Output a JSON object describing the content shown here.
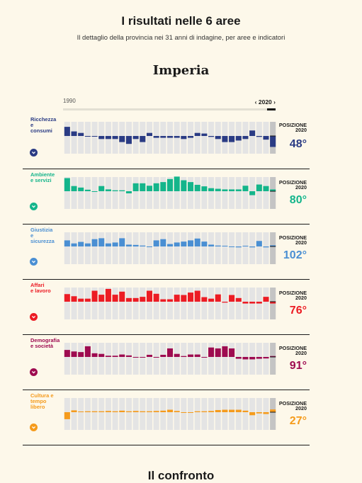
{
  "header": {
    "title": "I risultati nelle 6 aree",
    "subtitle": "Il dettaglio della provincia nei 31 anni di indagine, per aree e indicatori",
    "province": "Imperia"
  },
  "timeline": {
    "start": "1990",
    "end": "2020",
    "selected": "2020"
  },
  "position_label_line1": "POSIZIONE",
  "position_label_line2": "2020",
  "bottom_title": "Il confronto",
  "chart_data": [
    {
      "type": "bar",
      "area": "Ricchezza e consumi",
      "label_lines": [
        "Ricchezza",
        "e",
        "consumi"
      ],
      "color": "#2a3b84",
      "position": "48°",
      "x_ticks": [
        "1990",
        "1995",
        "2000",
        "2005",
        "2010",
        "2015",
        "2020"
      ],
      "years": [
        1990,
        1991,
        1992,
        1993,
        1994,
        1995,
        1996,
        1997,
        1998,
        1999,
        2000,
        2001,
        2002,
        2003,
        2004,
        2005,
        2006,
        2007,
        2008,
        2009,
        2010,
        2011,
        2012,
        2013,
        2014,
        2015,
        2016,
        2017,
        2018,
        2019,
        2020
      ],
      "values": [
        3,
        1.5,
        1,
        -0.2,
        -0.2,
        -1,
        -1,
        -1,
        -2,
        -2.6,
        -1,
        -2,
        1,
        -0.6,
        -0.6,
        -0.6,
        -0.6,
        -1,
        -0.6,
        1,
        0.8,
        -0.3,
        -1,
        -2,
        -2,
        -1.5,
        -1,
        1.8,
        -0.3,
        -1.2,
        -3.6
      ]
    },
    {
      "type": "bar",
      "area": "Ambiente e servizi",
      "label_lines": [
        "Ambiente",
        "e servizi"
      ],
      "color": "#14b58b",
      "position": "80°",
      "x_ticks": [
        "1990",
        "1995",
        "2000",
        "2005",
        "2010",
        "2015",
        "2020"
      ],
      "years": [
        1990,
        1991,
        1992,
        1993,
        1994,
        1995,
        1996,
        1997,
        1998,
        1999,
        2000,
        2001,
        2002,
        2003,
        2004,
        2005,
        2006,
        2007,
        2008,
        2009,
        2010,
        2011,
        2012,
        2013,
        2014,
        2015,
        2016,
        2017,
        2018,
        2019,
        2020
      ],
      "values": [
        4.3,
        1.7,
        1.2,
        0.5,
        -0.2,
        1.7,
        0.6,
        0.3,
        0.3,
        -0.7,
        2.6,
        2.6,
        1.8,
        2.6,
        3,
        4,
        4.8,
        3.6,
        3,
        2.1,
        1.6,
        1,
        0.8,
        0.6,
        0.6,
        0.6,
        1.8,
        -1.3,
        2.2,
        1.7,
        0.6
      ]
    },
    {
      "type": "bar",
      "area": "Giustizia e sicurezza",
      "label_lines": [
        "Giustizia",
        "e",
        "sicurezza"
      ],
      "color": "#4a8fd3",
      "position": "102°",
      "x_ticks": [
        "1990",
        "1995",
        "2000",
        "2005",
        "2010",
        "2015",
        "2020"
      ],
      "years": [
        1990,
        1991,
        1992,
        1993,
        1994,
        1995,
        1996,
        1997,
        1998,
        1999,
        2000,
        2001,
        2002,
        2003,
        2004,
        2005,
        2006,
        2007,
        2008,
        2009,
        2010,
        2011,
        2012,
        2013,
        2014,
        2015,
        2016,
        2017,
        2018,
        2019,
        2020
      ],
      "values": [
        2,
        1,
        1.5,
        1,
        2.4,
        2.7,
        1,
        1.3,
        2.7,
        0.6,
        0.5,
        0.3,
        -0.2,
        2,
        2.4,
        0.8,
        1.3,
        1.6,
        2,
        2.6,
        1.6,
        0.6,
        0.3,
        0.2,
        -0.2,
        -0.3,
        0.2,
        -0.3,
        1.8,
        -0.3,
        0.4
      ]
    },
    {
      "type": "bar",
      "area": "Affari e lavoro",
      "label_lines": [
        "Affari",
        "e lavoro"
      ],
      "color": "#ec1c24",
      "position": "76°",
      "x_ticks": [
        "1990",
        "1995",
        "2000",
        "2005",
        "2010",
        "2015",
        "2020"
      ],
      "years": [
        1990,
        1991,
        1992,
        1993,
        1994,
        1995,
        1996,
        1997,
        1998,
        1999,
        2000,
        2001,
        2002,
        2003,
        2004,
        2005,
        2006,
        2007,
        2008,
        2009,
        2010,
        2011,
        2012,
        2013,
        2014,
        2015,
        2016,
        2017,
        2018,
        2019,
        2020
      ],
      "values": [
        2.5,
        1.8,
        1,
        1,
        3.6,
        2.3,
        4.2,
        2.3,
        3.3,
        1.2,
        1.2,
        1.6,
        3.6,
        2.6,
        0.8,
        0.8,
        2.3,
        2.2,
        3,
        3.6,
        1.5,
        1,
        2.4,
        -0.3,
        2.2,
        1.2,
        -0.6,
        -0.6,
        -0.6,
        1.6,
        -0.6
      ]
    },
    {
      "type": "bar",
      "area": "Demografia e società",
      "label_lines": [
        "Demografia",
        "e società"
      ],
      "color": "#9e0b50",
      "position": "91°",
      "x_ticks": [
        "1990",
        "1995",
        "2000",
        "2005",
        "2010",
        "2015",
        "2020"
      ],
      "years": [
        1990,
        1991,
        1992,
        1993,
        1994,
        1995,
        1996,
        1997,
        1998,
        1999,
        2000,
        2001,
        2002,
        2003,
        2004,
        2005,
        2006,
        2007,
        2008,
        2009,
        2010,
        2011,
        2012,
        2013,
        2014,
        2015,
        2016,
        2017,
        2018,
        2019,
        2020
      ],
      "values": [
        2.3,
        1.8,
        1.6,
        3.5,
        1.2,
        1,
        0.4,
        0.4,
        0.8,
        0.5,
        -0.2,
        -0.2,
        0.7,
        -0.2,
        0.7,
        2.8,
        1,
        0.3,
        0.8,
        0.8,
        -0.2,
        3.1,
        2.8,
        3.5,
        2.8,
        -0.6,
        -0.8,
        -0.8,
        -0.6,
        -0.5,
        0.3
      ]
    },
    {
      "type": "bar",
      "area": "Cultura e tempo libero",
      "label_lines": [
        "Cultura e",
        "tempo",
        "libero"
      ],
      "color": "#f59b1c",
      "position": "27°",
      "x_ticks": [
        "1990",
        "1995",
        "2000",
        "2005",
        "2010",
        "2015",
        "2020"
      ],
      "years": [
        1990,
        1991,
        1992,
        1993,
        1994,
        1995,
        1996,
        1997,
        1998,
        1999,
        2000,
        2001,
        2002,
        2003,
        2004,
        2005,
        2006,
        2007,
        2008,
        2009,
        2010,
        2011,
        2012,
        2013,
        2014,
        2015,
        2016,
        2017,
        2018,
        2019,
        2020
      ],
      "values": [
        -2.3,
        0.6,
        0.2,
        0.3,
        0.3,
        0.3,
        0.4,
        0.3,
        0.5,
        0.3,
        0.4,
        0.3,
        0.3,
        0.4,
        0.5,
        0.8,
        0.4,
        -0.2,
        -0.2,
        0.3,
        0.3,
        0.4,
        0.7,
        0.8,
        0.8,
        0.8,
        0.5,
        -1,
        -0.4,
        -0.6,
        0.9
      ]
    }
  ]
}
